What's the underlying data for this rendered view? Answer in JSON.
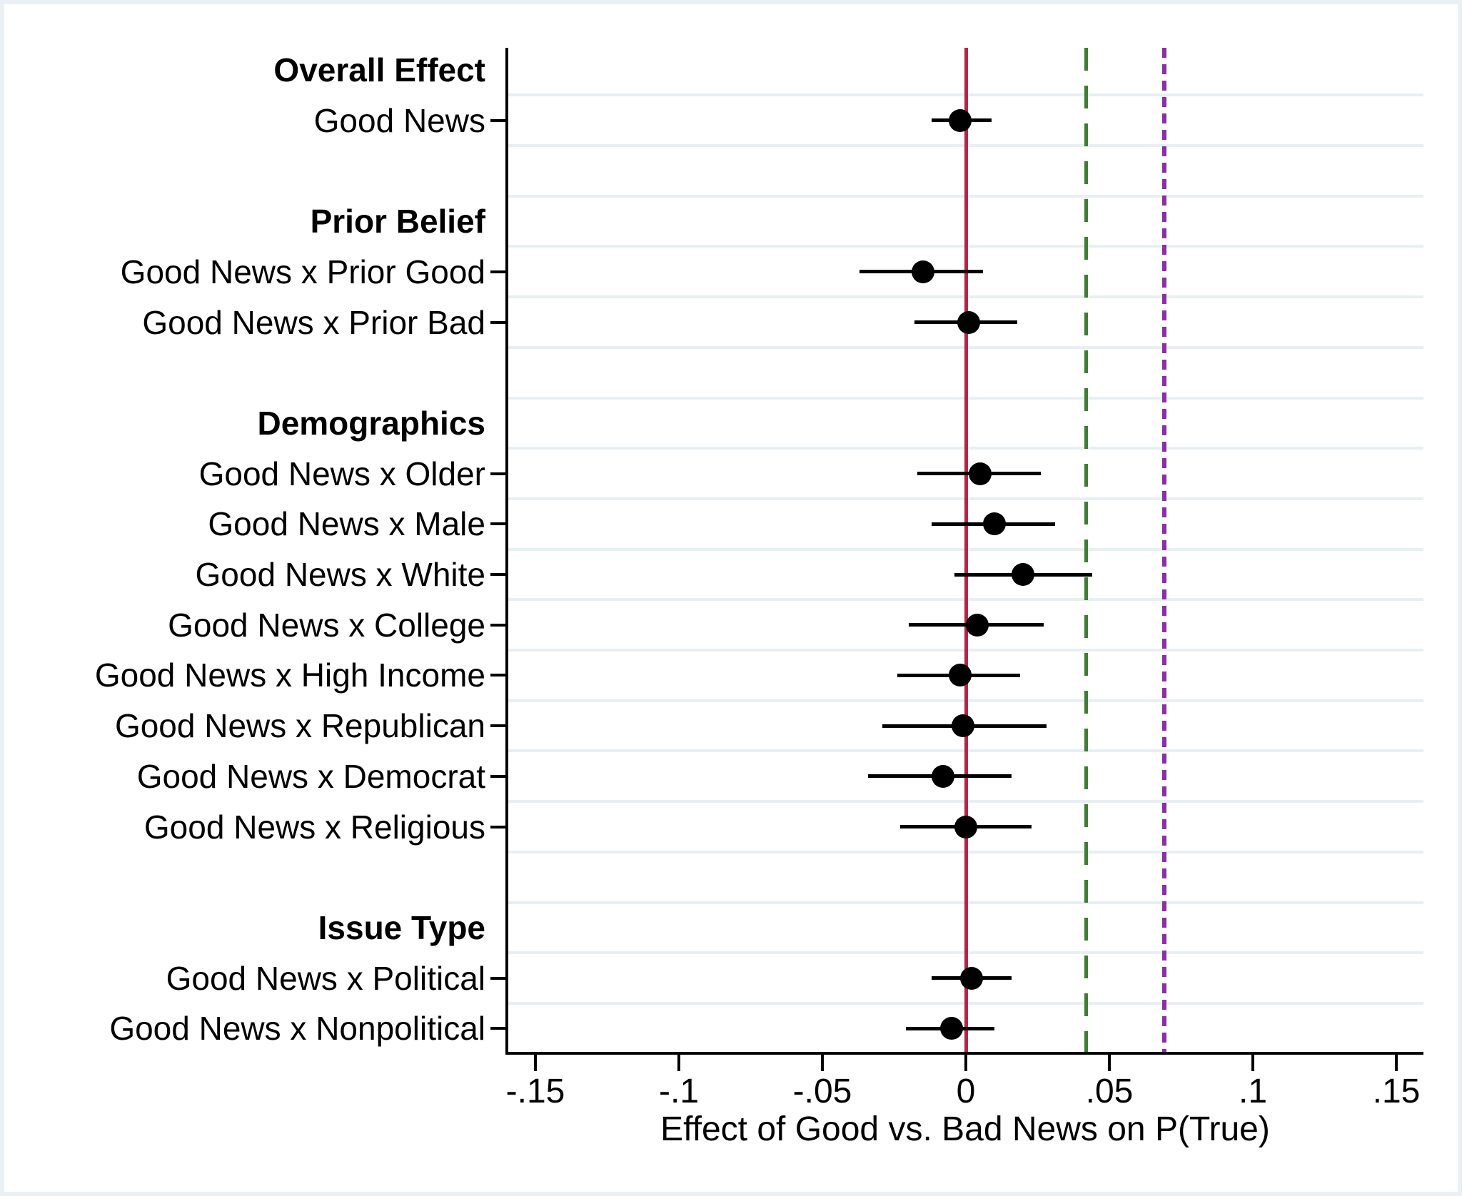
{
  "chart_data": {
    "type": "scatter",
    "subtype": "coefficient-forest-plot",
    "title": "",
    "xlabel": "Effect of Good vs. Bad News on P(True)",
    "ylabel": "",
    "xlim": [
      -0.1597,
      0.1595
    ],
    "grid": true,
    "x_ticks": [
      -0.15,
      -0.1,
      -0.05,
      0,
      0.05,
      0.1,
      0.15
    ],
    "x_tick_labels": [
      "-.15",
      "-.1",
      "-.05",
      "0",
      ".05",
      ".1",
      ".15"
    ],
    "rows": [
      {
        "kind": "header",
        "label": "Overall Effect"
      },
      {
        "kind": "item",
        "label": "Good News",
        "estimate": -0.002,
        "ci_low": -0.012,
        "ci_high": 0.009
      },
      {
        "kind": "gap",
        "label": ""
      },
      {
        "kind": "header",
        "label": "Prior Belief"
      },
      {
        "kind": "item",
        "label": "Good News x Prior Good",
        "estimate": -0.015,
        "ci_low": -0.037,
        "ci_high": 0.006
      },
      {
        "kind": "item",
        "label": "Good News x Prior Bad",
        "estimate": 0.001,
        "ci_low": -0.018,
        "ci_high": 0.018
      },
      {
        "kind": "gap",
        "label": ""
      },
      {
        "kind": "header",
        "label": "Demographics"
      },
      {
        "kind": "item",
        "label": "Good News x Older",
        "estimate": 0.005,
        "ci_low": -0.017,
        "ci_high": 0.026
      },
      {
        "kind": "item",
        "label": "Good News x Male",
        "estimate": 0.01,
        "ci_low": -0.012,
        "ci_high": 0.031
      },
      {
        "kind": "item",
        "label": "Good News x White",
        "estimate": 0.02,
        "ci_low": -0.004,
        "ci_high": 0.044
      },
      {
        "kind": "item",
        "label": "Good News x College",
        "estimate": 0.004,
        "ci_low": -0.02,
        "ci_high": 0.027
      },
      {
        "kind": "item",
        "label": "Good News x High Income",
        "estimate": -0.002,
        "ci_low": -0.024,
        "ci_high": 0.019
      },
      {
        "kind": "item",
        "label": "Good News x Republican",
        "estimate": -0.001,
        "ci_low": -0.029,
        "ci_high": 0.028
      },
      {
        "kind": "item",
        "label": "Good News x Democrat",
        "estimate": -0.008,
        "ci_low": -0.034,
        "ci_high": 0.016
      },
      {
        "kind": "item",
        "label": "Good News x Religious",
        "estimate": 0.0,
        "ci_low": -0.023,
        "ci_high": 0.023
      },
      {
        "kind": "gap",
        "label": ""
      },
      {
        "kind": "header",
        "label": "Issue Type"
      },
      {
        "kind": "item",
        "label": "Good News x Political",
        "estimate": 0.002,
        "ci_low": -0.012,
        "ci_high": 0.016
      },
      {
        "kind": "item",
        "label": "Good News x Nonpolitical",
        "estimate": -0.005,
        "ci_low": -0.021,
        "ci_high": 0.01
      }
    ],
    "ref_lines": [
      {
        "name": "zero-line",
        "value": 0,
        "style": "solid",
        "color": "#b12748"
      },
      {
        "name": "green-reference-line",
        "value": 0.042,
        "style": "long-dash",
        "color": "#3e7d33"
      },
      {
        "name": "purple-reference-line",
        "value": 0.069,
        "style": "short-dash",
        "color": "#8b2fa6"
      }
    ],
    "marker_color": "#000000",
    "gridline_color": "#e8eff3",
    "frame_color": "#eaf1f6",
    "legend": "none"
  }
}
